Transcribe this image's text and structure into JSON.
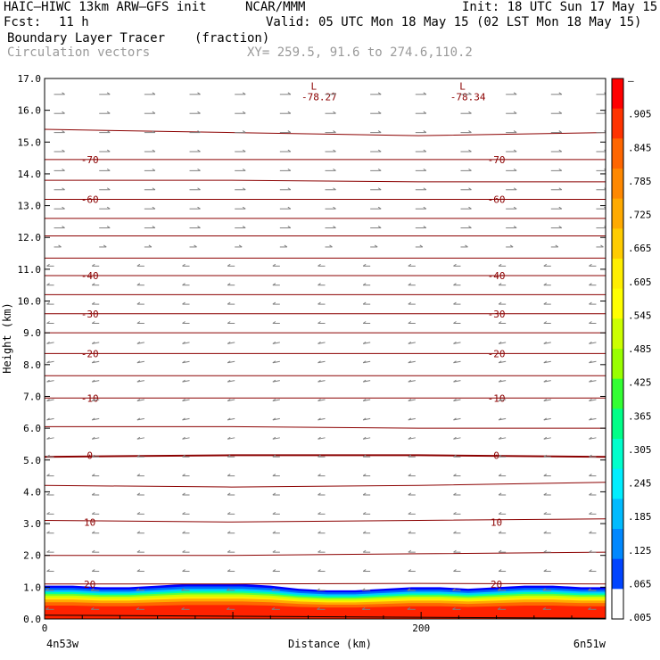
{
  "header": {
    "model": "HAIC–HIWC 13km ARW–GFS init",
    "org": "NCAR/MMM",
    "init": "Init: 18 UTC Sun 17 May 15",
    "fcst_label": "Fcst:",
    "fcst_value": "11 h",
    "valid": "Valid: 05 UTC Mon 18 May 15 (02 LST Mon 18 May 15)",
    "field": "Boundary Layer Tracer",
    "units": "(fraction)",
    "vectors": "Circulation vectors",
    "xy": "XY= 259.5, 91.6 to 274.6,110.2"
  },
  "colors": {
    "contour": "#8b0000",
    "vector": "#808080",
    "text": "#000000"
  },
  "chart_data": {
    "type": "heatmap",
    "ylabel": "Height (km)",
    "xlabel": "Distance (km)",
    "ylim": [
      0,
      17
    ],
    "xlim": [
      0,
      298
    ],
    "y_ticks": [
      "0.0",
      "1.0",
      "2.0",
      "3.0",
      "4.0",
      "5.0",
      "6.0",
      "7.0",
      "8.0",
      "9.0",
      "10.0",
      "11.0",
      "12.0",
      "13.0",
      "14.0",
      "15.0",
      "16.0",
      "17.0"
    ],
    "x_ticks": [
      {
        "value": 0,
        "label": "0"
      },
      {
        "value": 200,
        "label": "200"
      }
    ],
    "endpoints": {
      "left": "4n53w",
      "right": "6n51w"
    },
    "tracer_top_km": [
      1.05,
      1.05,
      1.0,
      1.0,
      1.05,
      1.1,
      1.1,
      1.1,
      1.05,
      0.95,
      0.9,
      0.9,
      0.95,
      1.0,
      1.0,
      0.95,
      1.0,
      1.05,
      1.05,
      1.0,
      1.0
    ],
    "tracer_x_km": [
      0,
      15,
      30,
      45,
      60,
      75,
      90,
      105,
      120,
      135,
      150,
      165,
      180,
      195,
      210,
      225,
      240,
      255,
      270,
      285,
      298
    ],
    "temperature_contours": [
      {
        "value": 20,
        "label": "20",
        "heights_km": [
          1.1,
          1.1,
          1.12,
          1.1
        ]
      },
      {
        "value": 15,
        "heights_km": [
          2.0,
          2.0,
          2.05,
          2.1
        ]
      },
      {
        "value": 10,
        "label": "10",
        "heights_km": [
          3.1,
          3.05,
          3.1,
          3.15
        ]
      },
      {
        "value": 5,
        "heights_km": [
          4.2,
          4.15,
          4.2,
          4.3
        ]
      },
      {
        "value": 0,
        "label": "0",
        "heights_km": [
          5.1,
          5.15,
          5.15,
          5.1
        ]
      },
      {
        "value": -5,
        "heights_km": [
          6.05,
          6.05,
          6.0,
          6.0
        ]
      },
      {
        "value": -10,
        "label": "-10",
        "heights_km": [
          6.95,
          6.95,
          6.95,
          6.95
        ]
      },
      {
        "value": -15,
        "heights_km": [
          7.65,
          7.65,
          7.65,
          7.65
        ]
      },
      {
        "value": -20,
        "label": "-20",
        "heights_km": [
          8.35,
          8.35,
          8.35,
          8.35
        ]
      },
      {
        "value": -25,
        "heights_km": [
          9.0,
          9.0,
          9.0,
          9.0
        ]
      },
      {
        "value": -30,
        "label": "-30",
        "heights_km": [
          9.6,
          9.6,
          9.6,
          9.6
        ]
      },
      {
        "value": -35,
        "heights_km": [
          10.2,
          10.2,
          10.2,
          10.2
        ]
      },
      {
        "value": -40,
        "label": "-40",
        "heights_km": [
          10.8,
          10.8,
          10.8,
          10.8
        ]
      },
      {
        "value": -45,
        "heights_km": [
          11.35,
          11.35,
          11.35,
          11.35
        ]
      },
      {
        "value": -50,
        "heights_km": [
          12.05,
          12.05,
          12.05,
          12.05
        ]
      },
      {
        "value": -55,
        "heights_km": [
          12.6,
          12.6,
          12.6,
          12.6
        ]
      },
      {
        "value": -60,
        "label": "-60",
        "heights_km": [
          13.2,
          13.2,
          13.2,
          13.2
        ]
      },
      {
        "value": -65,
        "heights_km": [
          13.8,
          13.8,
          13.75,
          13.75
        ]
      },
      {
        "value": -70,
        "label": "-70",
        "heights_km": [
          14.45,
          14.45,
          14.45,
          14.45
        ]
      },
      {
        "value": -75,
        "heights_km": [
          15.4,
          15.3,
          15.2,
          15.3
        ]
      }
    ],
    "minima": [
      {
        "x_km": 143,
        "y_km": 16.6,
        "mark": "L",
        "label": "-78.27"
      },
      {
        "x_km": 222,
        "y_km": 16.6,
        "mark": "L",
        "label": "-78.34"
      }
    ],
    "colorbar": {
      "labels": [
        "–",
        ".905",
        ".845",
        ".785",
        ".725",
        ".665",
        ".605",
        ".545",
        ".485",
        ".425",
        ".365",
        ".305",
        ".245",
        ".185",
        ".125",
        ".065",
        ".005"
      ],
      "colors_top_to_bottom": [
        "#ff0000",
        "#ff3300",
        "#ff6600",
        "#ff8800",
        "#ffaa00",
        "#ffcc00",
        "#ffee00",
        "#ffff00",
        "#ccff00",
        "#99ff00",
        "#33ff33",
        "#00ff88",
        "#00ffcc",
        "#00eeff",
        "#00bbff",
        "#0088ff",
        "#0044ff",
        "#ffffff"
      ]
    }
  }
}
